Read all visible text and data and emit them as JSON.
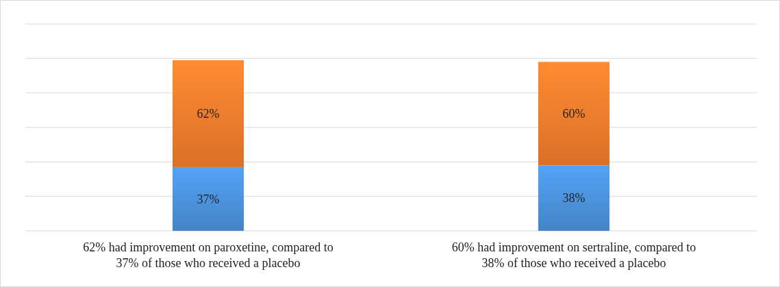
{
  "chart_data": {
    "type": "bar",
    "stacked": true,
    "categories": [
      "62% had improvement on paroxetine, compared to 37% of those who received a placebo",
      "60% had improvement on sertraline, compared to 38% of those who received a placebo"
    ],
    "series": [
      {
        "color": "#4a90d9",
        "values": [
          37,
          38
        ],
        "value_labels": [
          "37%",
          "38%"
        ]
      },
      {
        "color": "#ee7b2c",
        "values": [
          62,
          60
        ],
        "value_labels": [
          "62%",
          "60%"
        ]
      }
    ],
    "ylim": [
      0,
      120
    ],
    "yticks": [
      {
        "value": 0,
        "label": null
      },
      {
        "value": 20,
        "label": null
      },
      {
        "value": 40,
        "label": null
      },
      {
        "value": 60,
        "label": null
      },
      {
        "value": 80,
        "label": null
      },
      {
        "value": 100,
        "label": null
      },
      {
        "value": 120,
        "label": null
      }
    ],
    "grid": "y",
    "tick_labels": "x"
  }
}
